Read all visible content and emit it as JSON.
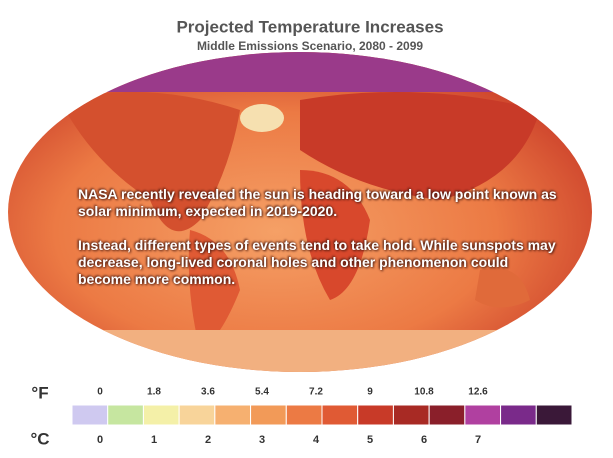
{
  "header": {
    "title": "Projected Temperature Increases",
    "subtitle": "Middle Emissions Scenario, 2080 - 2099"
  },
  "overlay": {
    "paragraphs": [
      "NASA recently revealed the sun is heading toward a low point known as solar minimum, expected in 2019-2020.",
      "Instead, different types of events tend to take hold. While sunspots may decrease, long-lived coronal holes and other phenomenon could become more common."
    ]
  },
  "legend": {
    "fahrenheit_unit": "°F",
    "celsius_unit": "°C",
    "fahrenheit_labels": [
      "0",
      "1.8",
      "3.6",
      "5.4",
      "7.2",
      "9",
      "10.8",
      "12.6"
    ],
    "celsius_labels": [
      "0",
      "1",
      "2",
      "3",
      "4",
      "5",
      "6",
      "7"
    ],
    "colors": [
      "#cfc9f0",
      "#c6e6a0",
      "#f4f0a8",
      "#f8d49a",
      "#f6b070",
      "#f29a58",
      "#ec7a44",
      "#e05a34",
      "#c83a28",
      "#a82a24",
      "#8a1f2a",
      "#b040a0",
      "#7a2a8a",
      "#3a1838"
    ]
  }
}
